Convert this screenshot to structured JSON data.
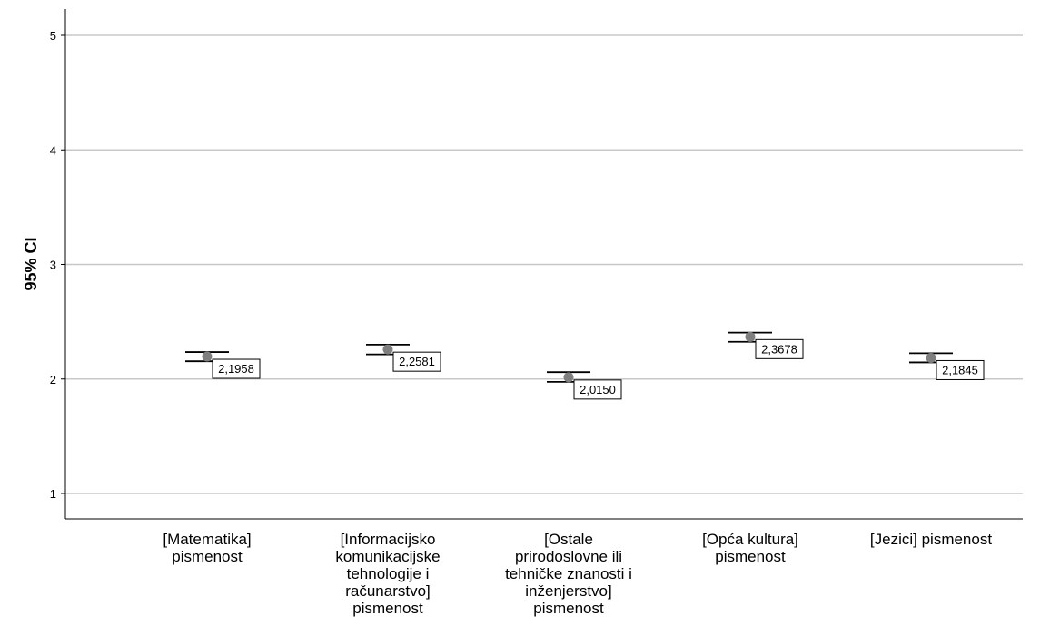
{
  "chart_data": {
    "type": "errorbar",
    "ylabel": "95% CI",
    "xlabel": "",
    "ylim": [
      0.8,
      5.2
    ],
    "yticks": [
      1,
      2,
      3,
      4,
      5
    ],
    "grid": true,
    "categories": [
      [
        "[Matematika]",
        "pismenost"
      ],
      [
        "[Informacijsko",
        "komunikacijske",
        "tehnologije i",
        "računarstvo]",
        "pismenost"
      ],
      [
        "[Ostale",
        "prirodoslovne ili",
        "tehničke znanosti i",
        "inženjerstvo]",
        "pismenost"
      ],
      [
        "[Opća kultura]",
        "pismenost"
      ],
      [
        "[Jezici] pismenost"
      ]
    ],
    "means": [
      2.1958,
      2.2581,
      2.015,
      2.3678,
      2.1845
    ],
    "mean_labels": [
      "2,1958",
      "2,2581",
      "2,0150",
      "2,3678",
      "2,1845"
    ],
    "ci_lower": [
      2.155,
      2.215,
      1.975,
      2.325,
      2.145
    ],
    "ci_upper": [
      2.235,
      2.3,
      2.06,
      2.405,
      2.225
    ],
    "colors": {
      "marker": "#7f7f7f",
      "whisker": "#000000",
      "grid": "#c8c8c8",
      "axis": "#000000"
    }
  }
}
